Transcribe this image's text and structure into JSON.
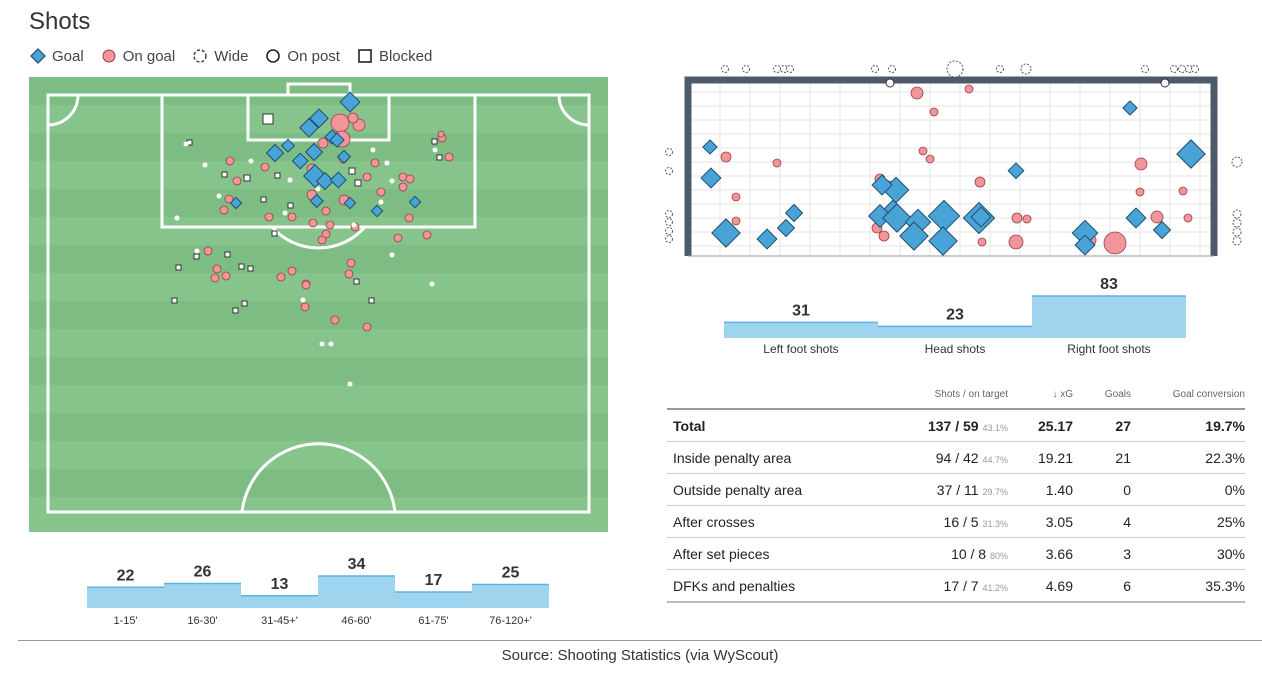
{
  "title": "Shots",
  "legend": {
    "goal": "Goal",
    "on_goal": "On goal",
    "wide": "Wide",
    "on_post": "On post",
    "blocked": "Blocked"
  },
  "colors": {
    "pitch": "#86c48c",
    "goal_marker": "#4aa3d6",
    "on_goal_marker": "#f0959a",
    "bar_fill": "#9fd4ef",
    "goal_frame": "#4d5a6a"
  },
  "chart_data": [
    {
      "type": "bar",
      "name": "shots-by-minute",
      "categories": [
        "1-15'",
        "16-30'",
        "31-45+'",
        "46-60'",
        "61-75'",
        "76-120+'"
      ],
      "values": [
        22,
        26,
        13,
        34,
        17,
        25
      ]
    },
    {
      "type": "bar",
      "name": "shots-by-body-part",
      "categories": [
        "Left foot shots",
        "Head shots",
        "Right foot shots"
      ],
      "values": [
        31,
        23,
        83
      ]
    },
    {
      "type": "table",
      "name": "shot-summary",
      "columns": [
        "",
        "Shots / on target",
        "↓ xG",
        "Goals",
        "Goal conversion"
      ],
      "rows": [
        {
          "label": "Total",
          "shots": "137 / 59",
          "pct": "43.1%",
          "xg": "25.17",
          "goals": "27",
          "conv": "19.7%"
        },
        {
          "label": "Inside penalty area",
          "shots": "94 / 42",
          "pct": "44.7%",
          "xg": "19.21",
          "goals": "21",
          "conv": "22.3%"
        },
        {
          "label": "Outside penalty area",
          "shots": "37 / 11",
          "pct": "29.7%",
          "xg": "1.40",
          "goals": "0",
          "conv": "0%"
        },
        {
          "label": "After crosses",
          "shots": "16 / 5",
          "pct": "31.3%",
          "xg": "3.05",
          "goals": "4",
          "conv": "25%"
        },
        {
          "label": "After set pieces",
          "shots": "10 / 8",
          "pct": "80%",
          "xg": "3.66",
          "goals": "3",
          "conv": "30%"
        },
        {
          "label": "DFKs and penalties",
          "shots": "17 / 7",
          "pct": "41.2%",
          "xg": "4.69",
          "goals": "6",
          "conv": "35.3%"
        }
      ]
    }
  ],
  "source": "Source: Shooting Statistics (via WyScout)"
}
